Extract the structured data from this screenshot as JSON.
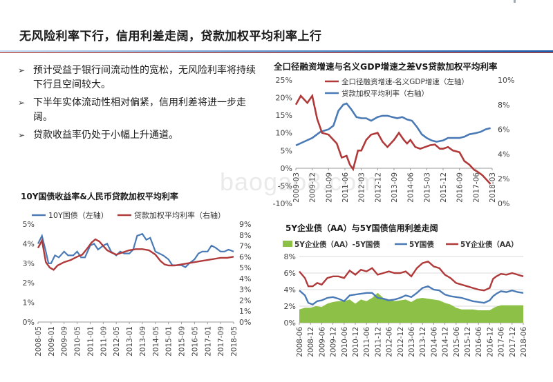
{
  "page": {
    "title": "无风险利率下行，信用利差走阔，贷款加权平均利率上行",
    "bullets": [
      "预计受益于银行间流动性的宽松，无风险利率将持续下行且空间较大。",
      "下半年实体流动性相对偏紧，信用利差将进一步走阔。",
      "贷款收益率仍处于小幅上升通道。"
    ],
    "bullet_mark": "➢",
    "watermark": "baogao8.com"
  },
  "colors": {
    "blue": "#4a7ab5",
    "red": "#b0393a",
    "green": "#8dc046",
    "grid": "#d9d9d9",
    "axis_text": "#444444"
  },
  "chart_data": [
    {
      "id": "tsf",
      "type": "line",
      "title": "全口径融资增速与名义GDP增速之差VS贷款加权平均利率",
      "series": [
        {
          "name": "全口径融资增速-名义GDP增速（左轴）",
          "axis": "left",
          "color": "#b0393a"
        },
        {
          "name": "贷款加权平均利率（右轴）",
          "axis": "right",
          "color": "#4a7ab5"
        }
      ],
      "x": [
        "2009-03",
        "2009-12",
        "2010-09",
        "2011-06",
        "2012-03",
        "2012-12",
        "2013-09",
        "2014-06",
        "2015-03",
        "2015-12",
        "2016-09",
        "2017-06",
        "2018-03"
      ],
      "y_left_ticks": [
        "25%",
        "20%",
        "15%",
        "10%",
        "5%",
        "0%",
        "-5%",
        "-10%"
      ],
      "y_right_ticks": [
        "10%",
        "8%",
        "6%",
        "4%",
        "2%",
        "0%"
      ],
      "ylim_left": [
        -10,
        25
      ],
      "ylim_right": [
        0,
        10
      ],
      "left_points": [
        [
          0,
          18
        ],
        [
          0.3,
          20.5
        ],
        [
          0.7,
          18.5
        ],
        [
          1,
          20.5
        ],
        [
          1.3,
          14
        ],
        [
          1.6,
          10
        ],
        [
          2,
          9.5
        ],
        [
          2.5,
          7
        ],
        [
          2.8,
          3
        ],
        [
          3.1,
          3.5
        ],
        [
          3.3,
          1
        ],
        [
          3.5,
          -0.3
        ],
        [
          3.8,
          5
        ],
        [
          4,
          5
        ],
        [
          4.3,
          8
        ],
        [
          4.6,
          9.5
        ],
        [
          5,
          10
        ],
        [
          5.3,
          7.5
        ],
        [
          5.6,
          6
        ],
        [
          6,
          8
        ],
        [
          6.3,
          10
        ],
        [
          6.6,
          8
        ],
        [
          6.8,
          7
        ],
        [
          7,
          8
        ],
        [
          7.3,
          6
        ],
        [
          7.6,
          5.5
        ],
        [
          7.9,
          6
        ],
        [
          8.2,
          6.5
        ],
        [
          8.5,
          6.7
        ],
        [
          8.8,
          5.5
        ],
        [
          9,
          5.5
        ],
        [
          9.3,
          6
        ],
        [
          9.6,
          5
        ],
        [
          10,
          4.5
        ],
        [
          10.3,
          2
        ],
        [
          10.6,
          1
        ],
        [
          10.9,
          -0.5
        ],
        [
          11.1,
          -1
        ],
        [
          11.4,
          -2
        ],
        [
          11.7,
          -3.5
        ],
        [
          11.9,
          -4.5
        ]
      ],
      "right_points": [
        [
          0,
          4.7
        ],
        [
          0.5,
          5
        ],
        [
          1,
          5.3
        ],
        [
          1.5,
          5.8
        ],
        [
          2,
          6
        ],
        [
          2.3,
          6.3
        ],
        [
          2.6,
          7.5
        ],
        [
          2.9,
          8
        ],
        [
          3.1,
          8.1
        ],
        [
          3.4,
          7.6
        ],
        [
          3.7,
          7
        ],
        [
          4,
          6.9
        ],
        [
          4.3,
          6.9
        ],
        [
          4.6,
          6.7
        ],
        [
          5,
          7
        ],
        [
          5.3,
          7.1
        ],
        [
          5.6,
          7.1
        ],
        [
          5.9,
          7
        ],
        [
          6.2,
          6.9
        ],
        [
          6.5,
          7
        ],
        [
          6.8,
          6.8
        ],
        [
          7.1,
          6.7
        ],
        [
          7.4,
          6.2
        ],
        [
          7.7,
          5.6
        ],
        [
          8,
          5.3
        ],
        [
          8.3,
          5.1
        ],
        [
          8.6,
          5
        ],
        [
          9,
          5.1
        ],
        [
          9.3,
          5.3
        ],
        [
          9.6,
          5.3
        ],
        [
          10,
          5.3
        ],
        [
          10.3,
          5.4
        ],
        [
          10.6,
          5.6
        ],
        [
          11,
          5.7
        ],
        [
          11.3,
          5.8
        ],
        [
          11.6,
          6
        ],
        [
          11.9,
          6.1
        ]
      ]
    },
    {
      "id": "yield10y",
      "type": "line",
      "title": "10Y国债收益率&人民币贷款加权平均利率",
      "series": [
        {
          "name": "10Y国债（左轴）",
          "axis": "left",
          "color": "#4a7ab5"
        },
        {
          "name": "贷款加权平均利率（右轴）",
          "axis": "right",
          "color": "#b0393a"
        }
      ],
      "x": [
        "2008-05",
        "2009-01",
        "2009-09",
        "2010-05",
        "2011-01",
        "2011-09",
        "2012-05",
        "2013-01",
        "2013-09",
        "2014-05",
        "2015-01",
        "2015-09",
        "2016-05",
        "2017-01",
        "2017-09",
        "2018-05"
      ],
      "y_left_ticks": [
        "5%",
        "4%",
        "3%",
        "2%",
        "1%",
        "0%"
      ],
      "y_right_ticks": [
        "9%",
        "8%",
        "7%",
        "6%",
        "5%",
        "4%",
        "3%",
        "2%",
        "1%",
        "0%"
      ],
      "ylim_left": [
        0,
        5
      ],
      "ylim_right": [
        0,
        9
      ],
      "left_points": [
        [
          0,
          4.0
        ],
        [
          0.3,
          4.4
        ],
        [
          0.6,
          3.6
        ],
        [
          0.8,
          3.0
        ],
        [
          1,
          3.0
        ],
        [
          1.3,
          3.4
        ],
        [
          1.6,
          3.3
        ],
        [
          2,
          3.6
        ],
        [
          2.3,
          3.4
        ],
        [
          2.7,
          3.4
        ],
        [
          3,
          3.6
        ],
        [
          3.3,
          3.3
        ],
        [
          3.6,
          3.3
        ],
        [
          4,
          3.9
        ],
        [
          4.3,
          4.0
        ],
        [
          4.6,
          3.7
        ],
        [
          5,
          3.9
        ],
        [
          5.3,
          4.0
        ],
        [
          5.6,
          3.6
        ],
        [
          6,
          3.4
        ],
        [
          6.3,
          3.6
        ],
        [
          6.6,
          3.5
        ],
        [
          7,
          3.5
        ],
        [
          7.3,
          3.7
        ],
        [
          7.6,
          4.4
        ],
        [
          8,
          4.5
        ],
        [
          8.3,
          4.2
        ],
        [
          8.6,
          4.3
        ],
        [
          9,
          3.6
        ],
        [
          9.3,
          3.5
        ],
        [
          9.6,
          3.4
        ],
        [
          10,
          3.2
        ],
        [
          10.3,
          2.9
        ],
        [
          10.6,
          2.9
        ],
        [
          11,
          2.9
        ],
        [
          11.3,
          2.8
        ],
        [
          11.6,
          3.0
        ],
        [
          12,
          3.2
        ],
        [
          12.3,
          3.5
        ],
        [
          12.6,
          3.6
        ],
        [
          13,
          3.6
        ],
        [
          13.3,
          3.9
        ],
        [
          13.6,
          3.8
        ],
        [
          14,
          3.6
        ],
        [
          14.3,
          3.6
        ],
        [
          14.6,
          3.7
        ],
        [
          15,
          3.6
        ]
      ],
      "right_points": [
        [
          0,
          6.8
        ],
        [
          0.3,
          7.5
        ],
        [
          0.6,
          5.5
        ],
        [
          0.9,
          5.0
        ],
        [
          1.2,
          4.8
        ],
        [
          1.5,
          5.2
        ],
        [
          2,
          5.5
        ],
        [
          2.5,
          5.7
        ],
        [
          3,
          6.0
        ],
        [
          3.4,
          6.2
        ],
        [
          3.8,
          6.8
        ],
        [
          4.1,
          7.3
        ],
        [
          4.4,
          7.6
        ],
        [
          4.7,
          7.4
        ],
        [
          5,
          7.0
        ],
        [
          5.3,
          6.6
        ],
        [
          5.6,
          6.4
        ],
        [
          6,
          6.2
        ],
        [
          6.5,
          6.4
        ],
        [
          7,
          6.6
        ],
        [
          7.5,
          6.7
        ],
        [
          8,
          6.7
        ],
        [
          8.5,
          6.6
        ],
        [
          9,
          6.2
        ],
        [
          9.4,
          5.6
        ],
        [
          9.7,
          5.3
        ],
        [
          10,
          5.2
        ],
        [
          10.5,
          5.2
        ],
        [
          11,
          5.3
        ],
        [
          11.5,
          5.4
        ],
        [
          12,
          5.5
        ],
        [
          12.5,
          5.6
        ],
        [
          13,
          5.7
        ],
        [
          13.5,
          5.8
        ],
        [
          14,
          5.9
        ],
        [
          14.5,
          5.9
        ],
        [
          15,
          6.0
        ]
      ]
    },
    {
      "id": "credit5y",
      "type": "area",
      "title": "5Y企业债（AA）与5Y国债信用利差走阔",
      "series": [
        {
          "name": "5Y企业债（AA）-5Y国债",
          "kind": "area",
          "color": "#8dc046"
        },
        {
          "name": "5Y国债",
          "kind": "line",
          "color": "#4a7ab5"
        },
        {
          "name": "5Y企业债（AA）",
          "kind": "line",
          "color": "#b0393a"
        }
      ],
      "x": [
        "2008-06",
        "2008-12",
        "2009-06",
        "2009-12",
        "2010-06",
        "2010-12",
        "2011-06",
        "2011-12",
        "2012-06",
        "2012-12",
        "2013-06",
        "2013-12",
        "2014-06",
        "2014-12",
        "2015-06",
        "2015-12",
        "2016-06",
        "2016-12",
        "2017-06",
        "2017-12",
        "2018-06"
      ],
      "y_ticks": [
        "8%",
        "6%",
        "4%",
        "2%",
        "0%"
      ],
      "ylim": [
        0,
        8
      ],
      "red_points": [
        [
          0,
          6.2
        ],
        [
          0.5,
          5.4
        ],
        [
          0.8,
          4.4
        ],
        [
          1.2,
          4.4
        ],
        [
          1.6,
          4.8
        ],
        [
          2,
          4.6
        ],
        [
          2.5,
          5.4
        ],
        [
          3,
          5.6
        ],
        [
          3.5,
          5.6
        ],
        [
          4,
          5.4
        ],
        [
          4.5,
          6.3
        ],
        [
          5,
          5.8
        ],
        [
          5.5,
          6.4
        ],
        [
          6,
          6.2
        ],
        [
          6.5,
          6.6
        ],
        [
          7,
          5.8
        ],
        [
          7.5,
          6.0
        ],
        [
          8,
          6.2
        ],
        [
          8.5,
          6.0
        ],
        [
          9,
          6.0
        ],
        [
          9.5,
          6.2
        ],
        [
          10,
          5.6
        ],
        [
          10.5,
          6.6
        ],
        [
          11,
          7.2
        ],
        [
          11.5,
          7.4
        ],
        [
          12,
          6.8
        ],
        [
          12.5,
          6.6
        ],
        [
          13,
          5.8
        ],
        [
          13.5,
          5.4
        ],
        [
          14,
          4.8
        ],
        [
          14.5,
          4.6
        ],
        [
          15,
          4.4
        ],
        [
          15.5,
          4.2
        ],
        [
          16,
          4.0
        ],
        [
          16.5,
          3.9
        ],
        [
          17,
          4.2
        ],
        [
          17.3,
          5.3
        ],
        [
          17.6,
          5.6
        ],
        [
          18,
          5.9
        ],
        [
          18.5,
          5.8
        ],
        [
          19,
          6.0
        ],
        [
          19.5,
          5.8
        ],
        [
          20,
          5.6
        ]
      ],
      "blue_points": [
        [
          0,
          3.9
        ],
        [
          0.5,
          3.3
        ],
        [
          0.8,
          2.4
        ],
        [
          1.2,
          2.2
        ],
        [
          1.6,
          2.6
        ],
        [
          2,
          2.7
        ],
        [
          2.5,
          3.0
        ],
        [
          3,
          3.1
        ],
        [
          3.5,
          2.9
        ],
        [
          4,
          2.6
        ],
        [
          4.5,
          3.3
        ],
        [
          5,
          3.4
        ],
        [
          5.5,
          3.5
        ],
        [
          6,
          3.6
        ],
        [
          6.5,
          3.6
        ],
        [
          7,
          3.0
        ],
        [
          7.5,
          2.9
        ],
        [
          8,
          2.7
        ],
        [
          8.5,
          2.8
        ],
        [
          9,
          3.0
        ],
        [
          9.5,
          3.3
        ],
        [
          10,
          3.1
        ],
        [
          10.5,
          3.6
        ],
        [
          11,
          4.2
        ],
        [
          11.5,
          4.4
        ],
        [
          12,
          4.0
        ],
        [
          12.5,
          3.9
        ],
        [
          13,
          3.4
        ],
        [
          13.5,
          3.2
        ],
        [
          14,
          3.1
        ],
        [
          14.5,
          3.0
        ],
        [
          15,
          2.8
        ],
        [
          15.5,
          2.6
        ],
        [
          16,
          2.5
        ],
        [
          16.5,
          2.4
        ],
        [
          17,
          2.7
        ],
        [
          17.3,
          3.2
        ],
        [
          17.6,
          3.5
        ],
        [
          18,
          3.8
        ],
        [
          18.5,
          3.7
        ],
        [
          19,
          3.9
        ],
        [
          19.5,
          3.7
        ],
        [
          20,
          3.6
        ]
      ],
      "area_points": [
        [
          0,
          1.6
        ],
        [
          0.5,
          1.8
        ],
        [
          1,
          1.8
        ],
        [
          1.5,
          2.0
        ],
        [
          2,
          1.9
        ],
        [
          2.5,
          2.3
        ],
        [
          3,
          2.5
        ],
        [
          3.5,
          2.6
        ],
        [
          4,
          2.6
        ],
        [
          4.5,
          2.8
        ],
        [
          5,
          2.3
        ],
        [
          5.5,
          2.8
        ],
        [
          6,
          2.6
        ],
        [
          6.5,
          3.0
        ],
        [
          7,
          3.6
        ],
        [
          7.5,
          3.0
        ],
        [
          8,
          2.8
        ],
        [
          8.5,
          2.6
        ],
        [
          9,
          2.7
        ],
        [
          9.5,
          2.8
        ],
        [
          10,
          2.5
        ],
        [
          10.5,
          2.9
        ],
        [
          11,
          3.0
        ],
        [
          11.5,
          2.9
        ],
        [
          12,
          2.8
        ],
        [
          12.5,
          2.7
        ],
        [
          13,
          2.4
        ],
        [
          13.5,
          2.2
        ],
        [
          14,
          1.8
        ],
        [
          14.5,
          1.6
        ],
        [
          15,
          1.6
        ],
        [
          15.5,
          1.6
        ],
        [
          16,
          1.5
        ],
        [
          16.5,
          1.5
        ],
        [
          17,
          1.5
        ],
        [
          17.5,
          1.9
        ],
        [
          18,
          2.1
        ],
        [
          18.5,
          2.1
        ],
        [
          19,
          2.1
        ],
        [
          19.5,
          2.1
        ],
        [
          20,
          2.1
        ]
      ]
    }
  ]
}
